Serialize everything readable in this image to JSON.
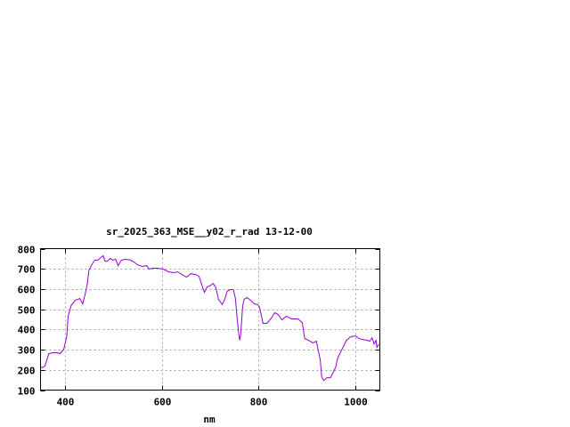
{
  "chart_data": {
    "type": "line",
    "title": "sr_2025_363_MSE__y02_r_rad 13-12-00",
    "xlabel": "nm",
    "ylabel": "",
    "xlim": [
      350,
      1050
    ],
    "ylim": [
      100,
      800
    ],
    "xticks": [
      400,
      600,
      800,
      1000
    ],
    "yticks": [
      100,
      200,
      300,
      400,
      500,
      600,
      700,
      800
    ],
    "grid": true,
    "line_color": "#9400d3",
    "series": [
      {
        "x": [
          350,
          359,
          367,
          376,
          385,
          390,
          398,
          404,
          407,
          413,
          422,
          431,
          437,
          442,
          446,
          450,
          457,
          462,
          468,
          473,
          479,
          483,
          488,
          494,
          499,
          505,
          510,
          517,
          525,
          536,
          543,
          550,
          560,
          569,
          574,
          582,
          591,
          602,
          615,
          624,
          633,
          642,
          651,
          660,
          670,
          677,
          684,
          688,
          694,
          699,
          706,
          712,
          717,
          725,
          730,
          735,
          741,
          748,
          752,
          756,
          759,
          761,
          763,
          767,
          770,
          776,
          783,
          791,
          798,
          802,
          809,
          817,
          826,
          833,
          840,
          848,
          857,
          868,
          881,
          890,
          895,
          903,
          912,
          919,
          927,
          930,
          934,
          941,
          948,
          954,
          959,
          963,
          972,
          981,
          990,
          1000,
          1007,
          1014,
          1024,
          1029,
          1034,
          1038,
          1042,
          1044,
          1048
        ],
        "y": [
          210,
          218,
          280,
          285,
          285,
          280,
          302,
          364,
          465,
          518,
          545,
          553,
          527,
          575,
          619,
          694,
          725,
          743,
          743,
          752,
          765,
          738,
          738,
          752,
          743,
          747,
          716,
          743,
          747,
          743,
          734,
          720,
          712,
          716,
          699,
          703,
          703,
          699,
          685,
          681,
          685,
          672,
          659,
          676,
          672,
          663,
          611,
          584,
          611,
          615,
          628,
          606,
          549,
          523,
          549,
          589,
          597,
          597,
          553,
          443,
          377,
          346,
          377,
          518,
          549,
          558,
          545,
          527,
          523,
          509,
          430,
          430,
          456,
          483,
          474,
          448,
          465,
          452,
          452,
          434,
          355,
          346,
          333,
          342,
          249,
          165,
          148,
          161,
          161,
          188,
          214,
          258,
          302,
          346,
          364,
          368,
          355,
          351,
          346,
          342,
          359,
          328,
          346,
          311,
          328
        ]
      }
    ]
  }
}
